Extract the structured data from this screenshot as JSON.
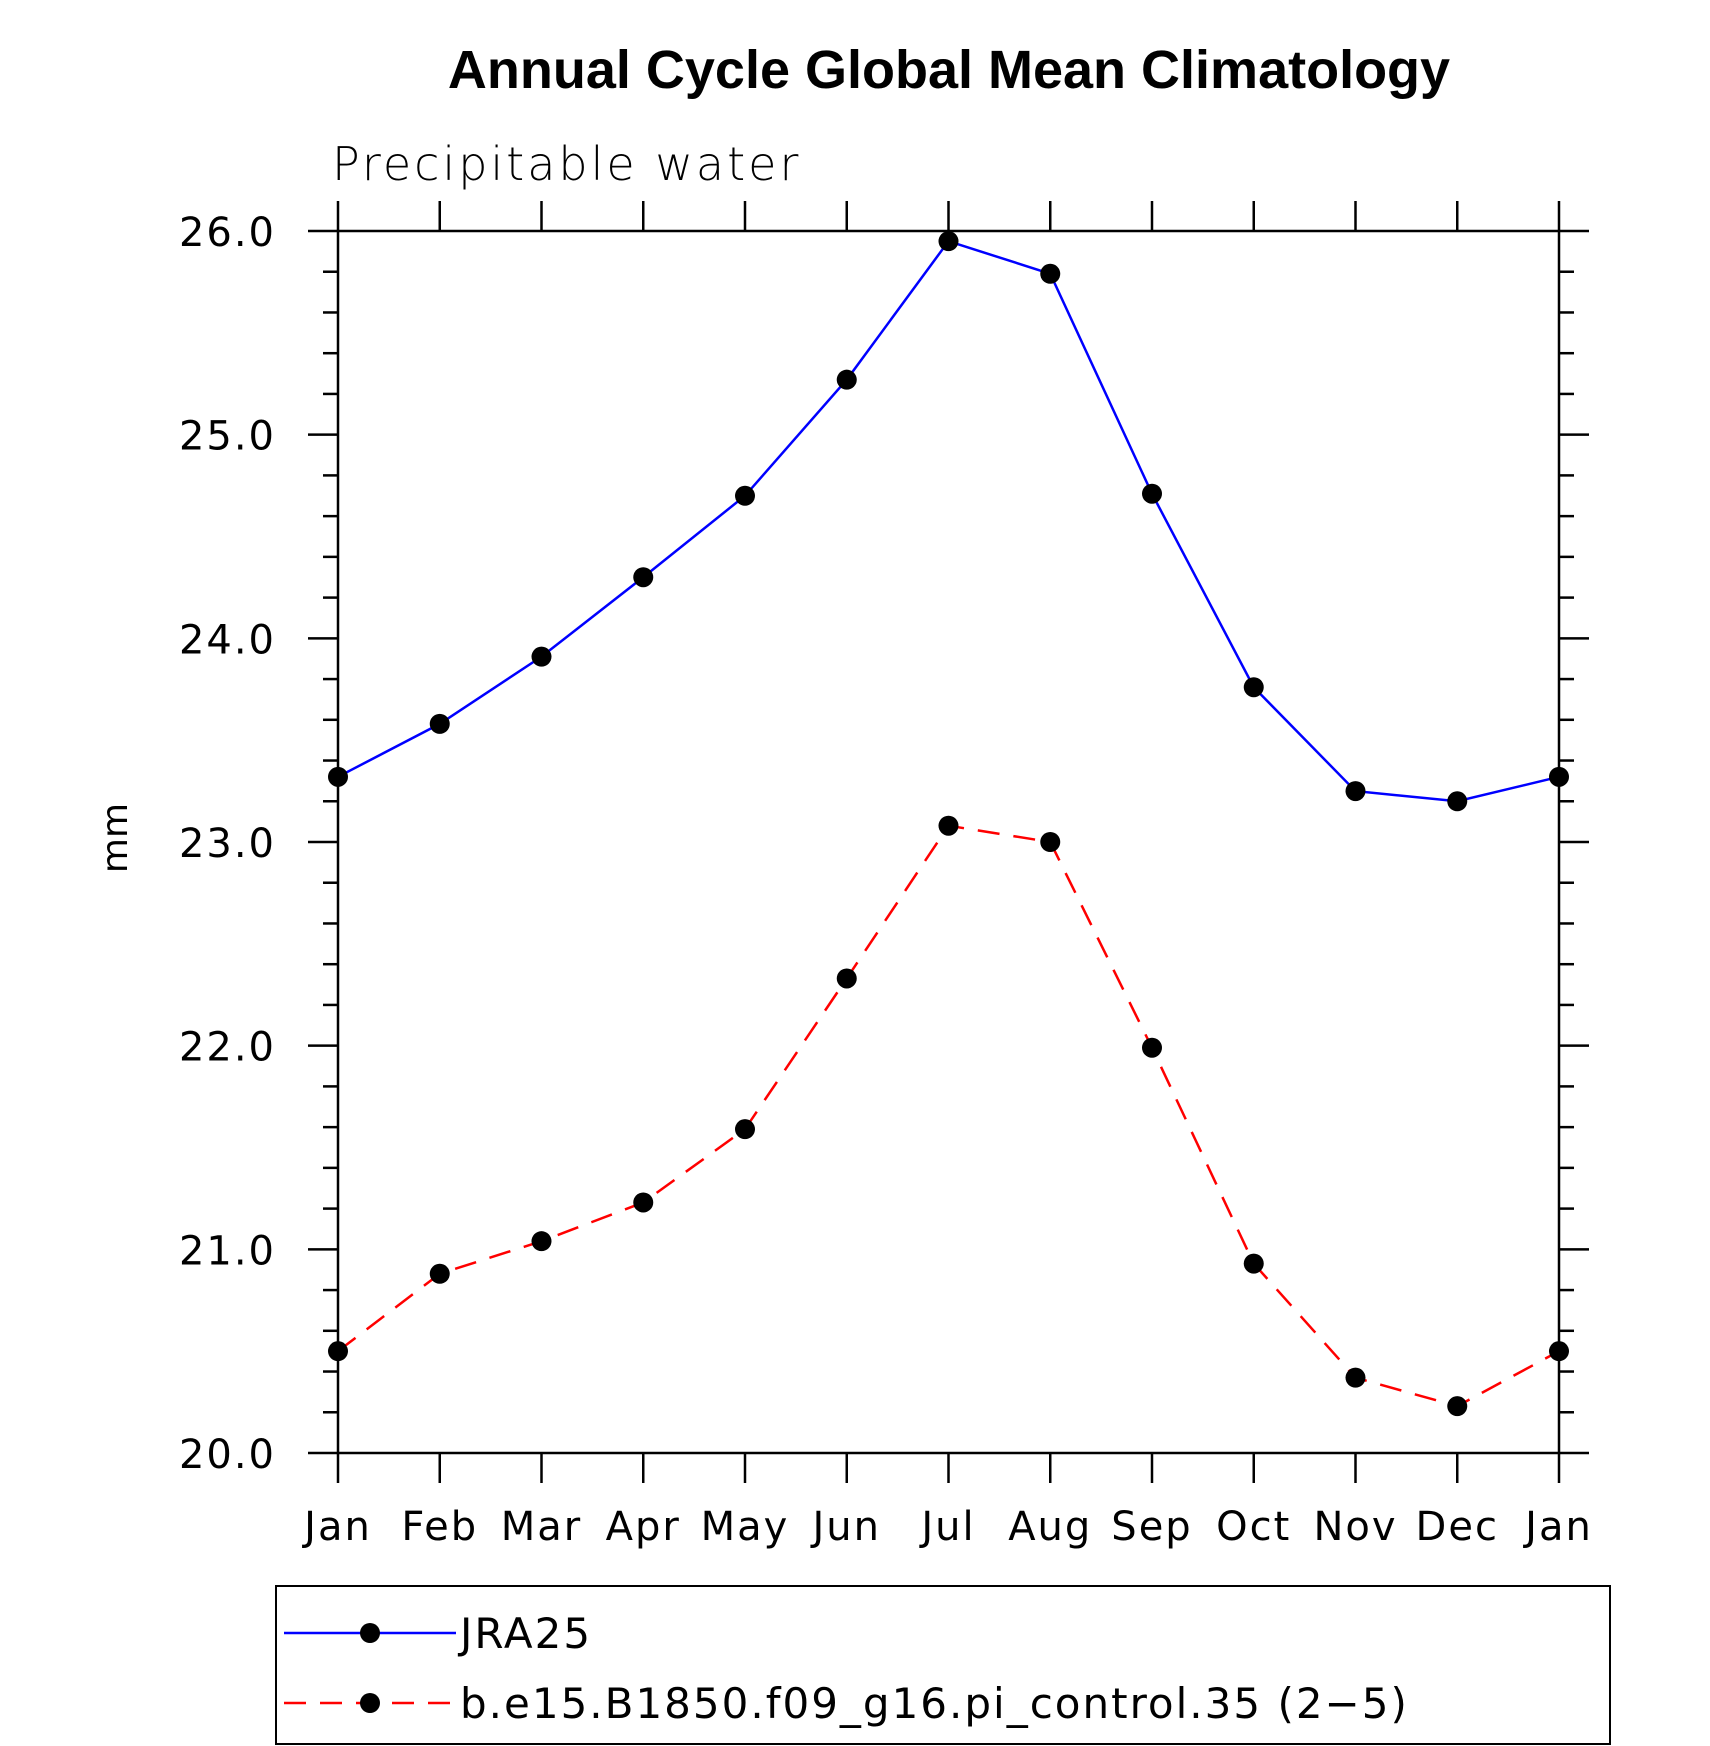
{
  "chart_data": {
    "type": "line",
    "title": "Annual Cycle Global Mean Climatology",
    "subtitle": "Precipitable water",
    "xlabel": "",
    "ylabel": "mm",
    "categories": [
      "Jan",
      "Feb",
      "Mar",
      "Apr",
      "May",
      "Jun",
      "Jul",
      "Aug",
      "Sep",
      "Oct",
      "Nov",
      "Dec",
      "Jan"
    ],
    "ylim": [
      20.0,
      26.0
    ],
    "yticks": [
      "20.0",
      "21.0",
      "22.0",
      "23.0",
      "24.0",
      "25.0",
      "26.0"
    ],
    "grid": false,
    "legend_position": "bottom",
    "series": [
      {
        "name": "JRA25",
        "color": "#0000ff",
        "dash": "solid",
        "values": [
          23.32,
          23.58,
          23.91,
          24.3,
          24.7,
          25.27,
          25.95,
          25.79,
          24.71,
          23.76,
          23.25,
          23.2,
          23.32
        ]
      },
      {
        "name": "b.e15.B1850.f09_g16.pi_control.35 (2−5)",
        "color": "#ff0000",
        "dash": "dashed",
        "values": [
          20.5,
          20.88,
          21.04,
          21.23,
          21.59,
          22.33,
          23.08,
          23.0,
          21.99,
          20.93,
          20.37,
          20.23,
          20.5
        ]
      }
    ]
  }
}
